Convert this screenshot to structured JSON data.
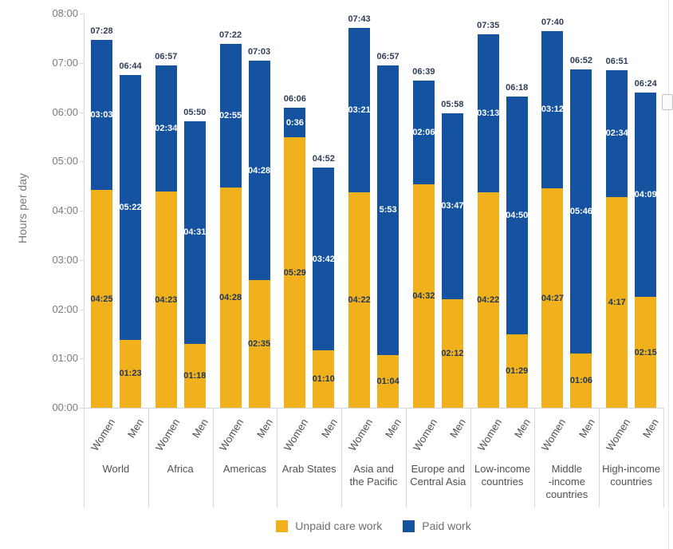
{
  "chart_data": {
    "type": "bar",
    "stacked": true,
    "title": "",
    "ylabel": "Hours per day",
    "y_ticks": [
      "00:00",
      "01:00",
      "02:00",
      "03:00",
      "04:00",
      "05:00",
      "06:00",
      "07:00",
      "08:00"
    ],
    "ylim_minutes": [
      0,
      480
    ],
    "grid": false,
    "legend_position": "bottom",
    "colors": {
      "unpaid": "#F1B11C",
      "paid": "#1553A0",
      "total_label": "#2E3D59",
      "unpaid_label": "#20375C",
      "paid_label": "#FFFFFF"
    },
    "legend": [
      {
        "label": "Unpaid care work",
        "color": "#F1B11C"
      },
      {
        "label": "Paid work",
        "color": "#1553A0"
      }
    ],
    "groups": [
      {
        "label": "World",
        "label_lines": [
          "World"
        ],
        "bars": [
          {
            "sex": "Women",
            "unpaid": "04:25",
            "paid": "03:03",
            "total": "07:28",
            "unpaid_min": 265,
            "paid_min": 183
          },
          {
            "sex": "Men",
            "unpaid": "01:23",
            "paid": "05:22",
            "total": "06:44",
            "unpaid_min": 83,
            "paid_min": 322
          }
        ]
      },
      {
        "label": "Africa",
        "label_lines": [
          "Africa"
        ],
        "bars": [
          {
            "sex": "Women",
            "unpaid": "04:23",
            "paid": "02:34",
            "total": "06:57",
            "unpaid_min": 263,
            "paid_min": 154
          },
          {
            "sex": "Men",
            "unpaid": "01:18",
            "paid": "04:31",
            "total": "05:50",
            "unpaid_min": 78,
            "paid_min": 271
          }
        ]
      },
      {
        "label": "Americas",
        "label_lines": [
          "Americas"
        ],
        "bars": [
          {
            "sex": "Women",
            "unpaid": "04:28",
            "paid": "02:55",
            "total": "07:22",
            "unpaid_min": 268,
            "paid_min": 175
          },
          {
            "sex": "Men",
            "unpaid": "02:35",
            "paid": "04:28",
            "total": "07:03",
            "unpaid_min": 155,
            "paid_min": 268
          }
        ]
      },
      {
        "label": "Arab States",
        "label_lines": [
          "Arab States"
        ],
        "bars": [
          {
            "sex": "Women",
            "unpaid": "05:29",
            "paid": "0:36",
            "total": "06:06",
            "unpaid_min": 329,
            "paid_min": 36
          },
          {
            "sex": "Men",
            "unpaid": "01:10",
            "paid": "03:42",
            "total": "04:52",
            "unpaid_min": 70,
            "paid_min": 222
          }
        ]
      },
      {
        "label": "Asia and the Pacific",
        "label_lines": [
          "Asia and",
          "the Pacific"
        ],
        "bars": [
          {
            "sex": "Women",
            "unpaid": "04:22",
            "paid": "03:21",
            "total": "07:43",
            "unpaid_min": 262,
            "paid_min": 201
          },
          {
            "sex": "Men",
            "unpaid": "01:04",
            "paid": "5:53",
            "total": "06:57",
            "unpaid_min": 64,
            "paid_min": 353
          }
        ]
      },
      {
        "label": "Europe and Central Asia",
        "label_lines": [
          "Europe and",
          "Central Asia"
        ],
        "bars": [
          {
            "sex": "Women",
            "unpaid": "04:32",
            "paid": "02:06",
            "total": "06:39",
            "unpaid_min": 272,
            "paid_min": 126
          },
          {
            "sex": "Men",
            "unpaid": "02:12",
            "paid": "03:47",
            "total": "05:58",
            "unpaid_min": 132,
            "paid_min": 227
          }
        ]
      },
      {
        "label": "Low-income countries",
        "label_lines": [
          "Low-income",
          "countries"
        ],
        "bars": [
          {
            "sex": "Women",
            "unpaid": "04:22",
            "paid": "03:13",
            "total": "07:35",
            "unpaid_min": 262,
            "paid_min": 193
          },
          {
            "sex": "Men",
            "unpaid": "01:29",
            "paid": "04:50",
            "total": "06:18",
            "unpaid_min": 89,
            "paid_min": 290
          }
        ]
      },
      {
        "label": "Middle-income countries",
        "label_lines": [
          "Middle",
          "-income",
          "countries"
        ],
        "bars": [
          {
            "sex": "Women",
            "unpaid": "04:27",
            "paid": "03:12",
            "total": "07:40",
            "unpaid_min": 267,
            "paid_min": 192
          },
          {
            "sex": "Men",
            "unpaid": "01:06",
            "paid": "05:46",
            "total": "06:52",
            "unpaid_min": 66,
            "paid_min": 346
          }
        ]
      },
      {
        "label": "High-income countries",
        "label_lines": [
          "High-income",
          "countries"
        ],
        "bars": [
          {
            "sex": "Women",
            "unpaid": "4:17",
            "paid": "02:34",
            "total": "06:51",
            "unpaid_min": 257,
            "paid_min": 154
          },
          {
            "sex": "Men",
            "unpaid": "02:15",
            "paid": "04:09",
            "total": "06:24",
            "unpaid_min": 135,
            "paid_min": 249
          }
        ]
      }
    ]
  }
}
